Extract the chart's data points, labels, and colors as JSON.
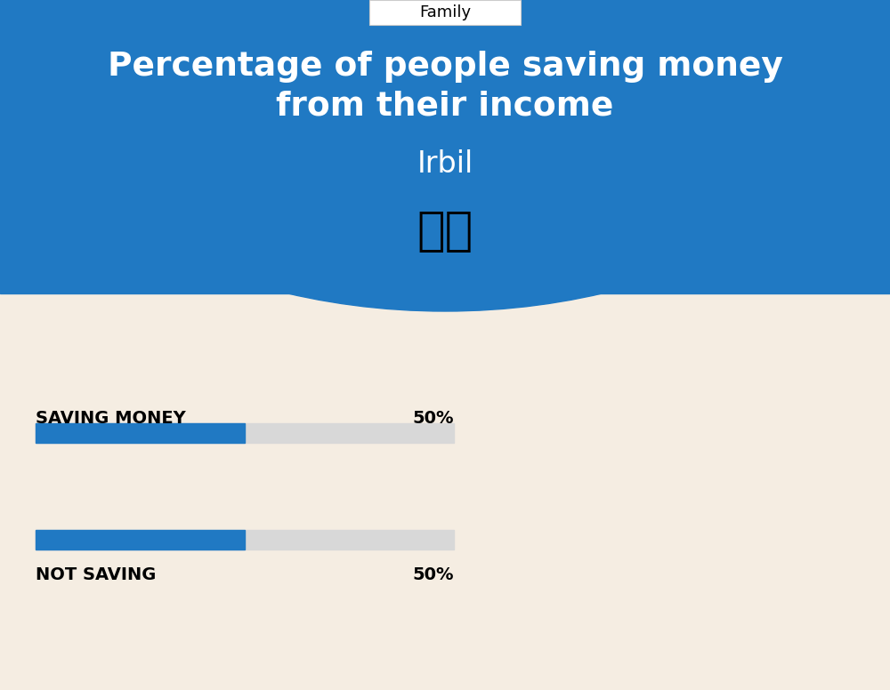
{
  "title_line1": "Percentage of people saving money",
  "title_line2": "from their income",
  "city": "Irbil",
  "category_label": "Family",
  "background_top": "#2079C3",
  "background_bottom": "#F5EDE2",
  "bar_blue": "#2079C3",
  "bar_gray": "#D8D8D8",
  "bars": [
    {
      "label": "SAVING MONEY",
      "value": 50
    },
    {
      "label": "NOT SAVING",
      "value": 50
    }
  ],
  "bar_total": 100,
  "figure_width": 10.0,
  "figure_height": 7.76
}
